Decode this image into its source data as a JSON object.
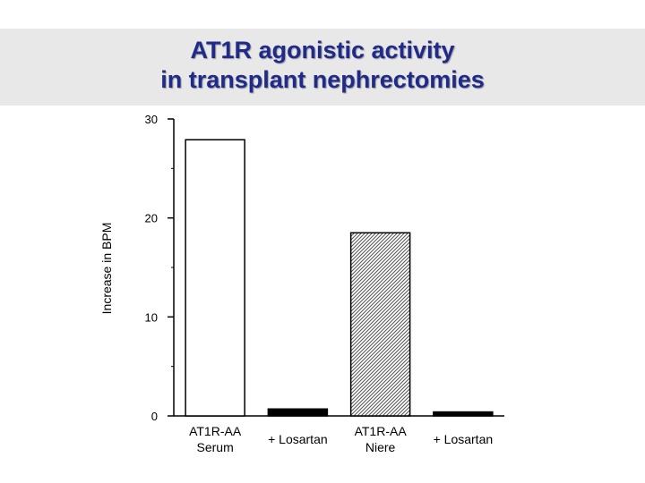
{
  "title": {
    "line1": "AT1R agonistic activity",
    "line2": "in transplant nephrectomies"
  },
  "chart_data": {
    "type": "bar",
    "title": "AT1R agonistic activity in transplant nephrectomies",
    "xlabel": "",
    "ylabel": "Increase in BPM",
    "ylim": [
      0,
      30
    ],
    "yticks": [
      0,
      10,
      20,
      30
    ],
    "grid": false,
    "categories": [
      [
        "AT1R-AA",
        "Serum"
      ],
      [
        "+ Losartan"
      ],
      [
        "AT1R-AA",
        "Niere"
      ],
      [
        "+ Losartan"
      ]
    ],
    "values": [
      27.9,
      0.7,
      18.5,
      0.4
    ],
    "bar_styles": [
      "white",
      "black",
      "hatched",
      "black"
    ]
  },
  "colors": {
    "title": "#1f2a8a",
    "title_band": "#e8e8e8",
    "bar_outline": "#000000",
    "bar_dark": "#000000"
  }
}
